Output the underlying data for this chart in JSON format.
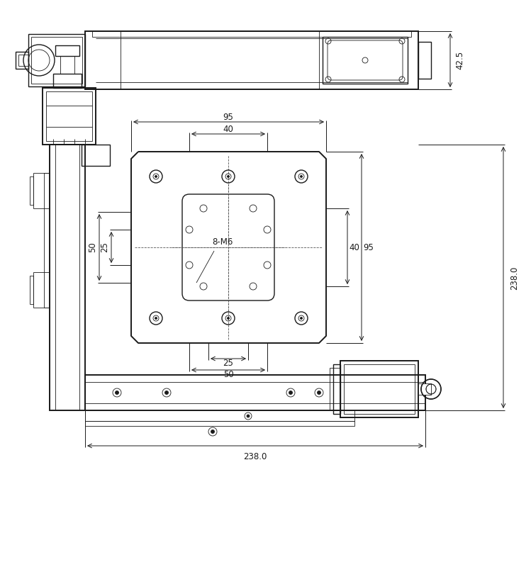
{
  "bg_color": "#ffffff",
  "lc": "#1a1a1a",
  "dc": "#1a1a1a",
  "dash_color": "#555555",
  "dims": {
    "d95": "95",
    "d40": "40",
    "d50": "50",
    "d25": "25",
    "r40": "40",
    "r95": "95",
    "b25": "25",
    "b50": "50",
    "w238": "238.0",
    "h238": "238.0",
    "h42": "42.5",
    "m6": "8-M6"
  },
  "lw_main": 1.4,
  "lw_mid": 1.0,
  "lw_thin": 0.6,
  "lw_dim": 0.7,
  "fs_dim": 8.5
}
